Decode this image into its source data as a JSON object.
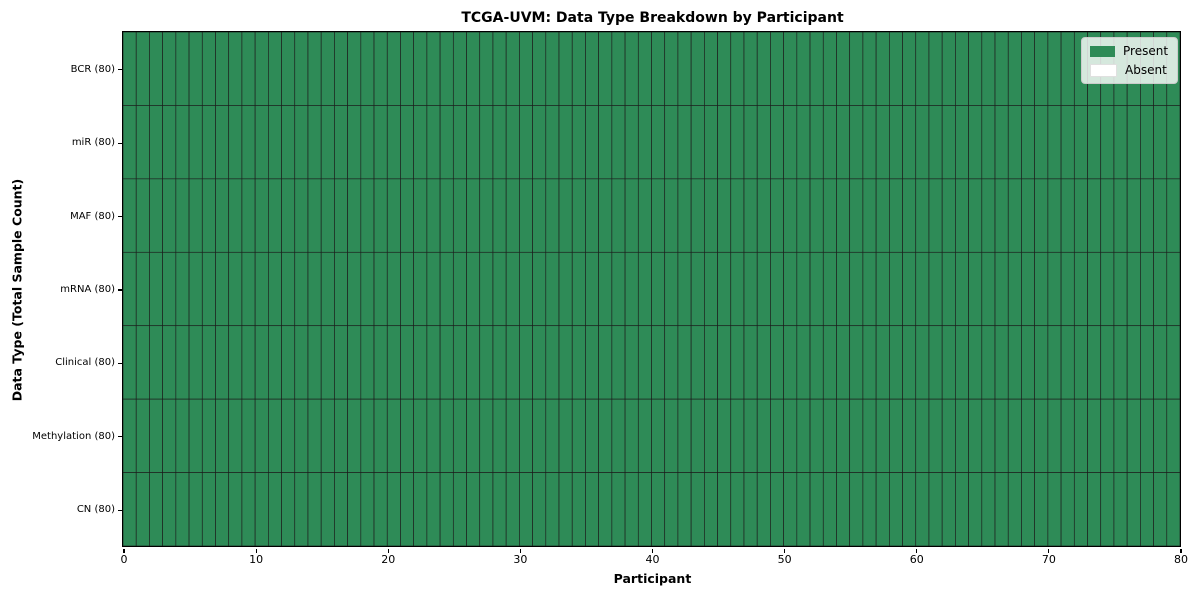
{
  "chart_data": {
    "type": "heatmap",
    "title": "TCGA-UVM: Data Type Breakdown by Participant",
    "xlabel": "Participant",
    "ylabel": "Data Type (Total Sample Count)",
    "x_range": [
      0,
      80
    ],
    "x_ticks": [
      0,
      10,
      20,
      30,
      40,
      50,
      60,
      70,
      80
    ],
    "n_participants": 80,
    "rows": [
      {
        "label": "BCR (80)",
        "data_type": "BCR",
        "total_sample_count": 80,
        "present_count": 80,
        "absent_count": 0
      },
      {
        "label": "miR (80)",
        "data_type": "miR",
        "total_sample_count": 80,
        "present_count": 80,
        "absent_count": 0
      },
      {
        "label": "MAF (80)",
        "data_type": "MAF",
        "total_sample_count": 80,
        "present_count": 80,
        "absent_count": 0
      },
      {
        "label": "mRNA (80)",
        "data_type": "mRNA",
        "total_sample_count": 80,
        "present_count": 80,
        "absent_count": 0
      },
      {
        "label": "Clinical (80)",
        "data_type": "Clinical",
        "total_sample_count": 80,
        "present_count": 80,
        "absent_count": 0
      },
      {
        "label": "Methylation (80)",
        "data_type": "Methylation",
        "total_sample_count": 80,
        "present_count": 80,
        "absent_count": 0
      },
      {
        "label": "CN (80)",
        "data_type": "CN",
        "total_sample_count": 80,
        "present_count": 80,
        "absent_count": 0
      }
    ],
    "legend": {
      "position": "upper-right",
      "entries": [
        {
          "label": "Present",
          "color": "#2E8B57"
        },
        {
          "label": "Absent",
          "color": "#FFFFFF"
        }
      ]
    },
    "colors": {
      "present": "#2E8B57",
      "absent": "#FFFFFF",
      "cell_edge": "#1c1c1c",
      "axis": "#000000",
      "background": "#FFFFFF"
    }
  }
}
